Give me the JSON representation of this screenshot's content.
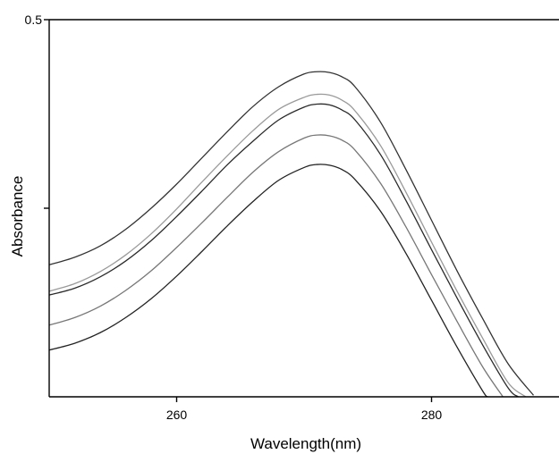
{
  "chart_data": {
    "type": "line",
    "title": "",
    "xlabel": "Wavelength(nm)",
    "ylabel": "Absorbance",
    "xlim": [
      250,
      290
    ],
    "ylim": [
      0,
      0.5
    ],
    "x_ticks": [
      {
        "value": 260,
        "label": "260"
      },
      {
        "value": 280,
        "label": "280"
      }
    ],
    "y_ticks": [
      {
        "value": 0.5,
        "label": "0.5"
      },
      {
        "value": 0.25,
        "label": ""
      }
    ],
    "grid": false,
    "legend": "none",
    "series": [
      {
        "color": "#333333",
        "points": [
          [
            250,
            0.175
          ],
          [
            252,
            0.185
          ],
          [
            254,
            0.2
          ],
          [
            256,
            0.222
          ],
          [
            258,
            0.25
          ],
          [
            260,
            0.282
          ],
          [
            262,
            0.317
          ],
          [
            264,
            0.352
          ],
          [
            266,
            0.385
          ],
          [
            268,
            0.411
          ],
          [
            270,
            0.428
          ],
          [
            271,
            0.431
          ],
          [
            272,
            0.43
          ],
          [
            273,
            0.424
          ],
          [
            274,
            0.411
          ],
          [
            276,
            0.364
          ],
          [
            278,
            0.301
          ],
          [
            280,
            0.234
          ],
          [
            282,
            0.167
          ],
          [
            284,
            0.104
          ],
          [
            286,
            0.044
          ],
          [
            288,
            0.002
          ]
        ]
      },
      {
        "color": "#9a9a9a",
        "points": [
          [
            250,
            0.14
          ],
          [
            252,
            0.15
          ],
          [
            254,
            0.166
          ],
          [
            256,
            0.188
          ],
          [
            258,
            0.216
          ],
          [
            260,
            0.249
          ],
          [
            262,
            0.285
          ],
          [
            264,
            0.32
          ],
          [
            266,
            0.353
          ],
          [
            268,
            0.381
          ],
          [
            270,
            0.397
          ],
          [
            271,
            0.401
          ],
          [
            272,
            0.4
          ],
          [
            273,
            0.393
          ],
          [
            274,
            0.379
          ],
          [
            276,
            0.333
          ],
          [
            278,
            0.271
          ],
          [
            280,
            0.205
          ],
          [
            282,
            0.14
          ],
          [
            284,
            0.078
          ],
          [
            286,
            0.019
          ],
          [
            287.4,
            0.0
          ]
        ]
      },
      {
        "color": "#2a2a2a",
        "points": [
          [
            250,
            0.135
          ],
          [
            252,
            0.144
          ],
          [
            254,
            0.159
          ],
          [
            256,
            0.18
          ],
          [
            258,
            0.207
          ],
          [
            260,
            0.239
          ],
          [
            262,
            0.273
          ],
          [
            264,
            0.308
          ],
          [
            266,
            0.339
          ],
          [
            268,
            0.367
          ],
          [
            270,
            0.384
          ],
          [
            271,
            0.388
          ],
          [
            272,
            0.387
          ],
          [
            273,
            0.38
          ],
          [
            274,
            0.367
          ],
          [
            276,
            0.321
          ],
          [
            278,
            0.26
          ],
          [
            280,
            0.195
          ],
          [
            282,
            0.131
          ],
          [
            284,
            0.069
          ],
          [
            286,
            0.012
          ],
          [
            286.8,
            0.0
          ]
        ]
      },
      {
        "color": "#777777",
        "points": [
          [
            250,
            0.095
          ],
          [
            252,
            0.105
          ],
          [
            254,
            0.12
          ],
          [
            256,
            0.141
          ],
          [
            258,
            0.167
          ],
          [
            260,
            0.198
          ],
          [
            262,
            0.231
          ],
          [
            264,
            0.265
          ],
          [
            266,
            0.298
          ],
          [
            268,
            0.325
          ],
          [
            270,
            0.343
          ],
          [
            271,
            0.347
          ],
          [
            272,
            0.346
          ],
          [
            273,
            0.34
          ],
          [
            274,
            0.327
          ],
          [
            276,
            0.283
          ],
          [
            278,
            0.225
          ],
          [
            280,
            0.162
          ],
          [
            282,
            0.1
          ],
          [
            284,
            0.04
          ],
          [
            285.6,
            0.0
          ]
        ]
      },
      {
        "color": "#222222",
        "points": [
          [
            250,
            0.062
          ],
          [
            252,
            0.071
          ],
          [
            254,
            0.085
          ],
          [
            256,
            0.105
          ],
          [
            258,
            0.13
          ],
          [
            260,
            0.16
          ],
          [
            262,
            0.193
          ],
          [
            264,
            0.227
          ],
          [
            266,
            0.259
          ],
          [
            268,
            0.287
          ],
          [
            270,
            0.304
          ],
          [
            271,
            0.308
          ],
          [
            272,
            0.307
          ],
          [
            273,
            0.301
          ],
          [
            274,
            0.288
          ],
          [
            276,
            0.246
          ],
          [
            278,
            0.19
          ],
          [
            280,
            0.128
          ],
          [
            282,
            0.066
          ],
          [
            284,
            0.008
          ],
          [
            284.4,
            0.0
          ]
        ]
      }
    ]
  }
}
